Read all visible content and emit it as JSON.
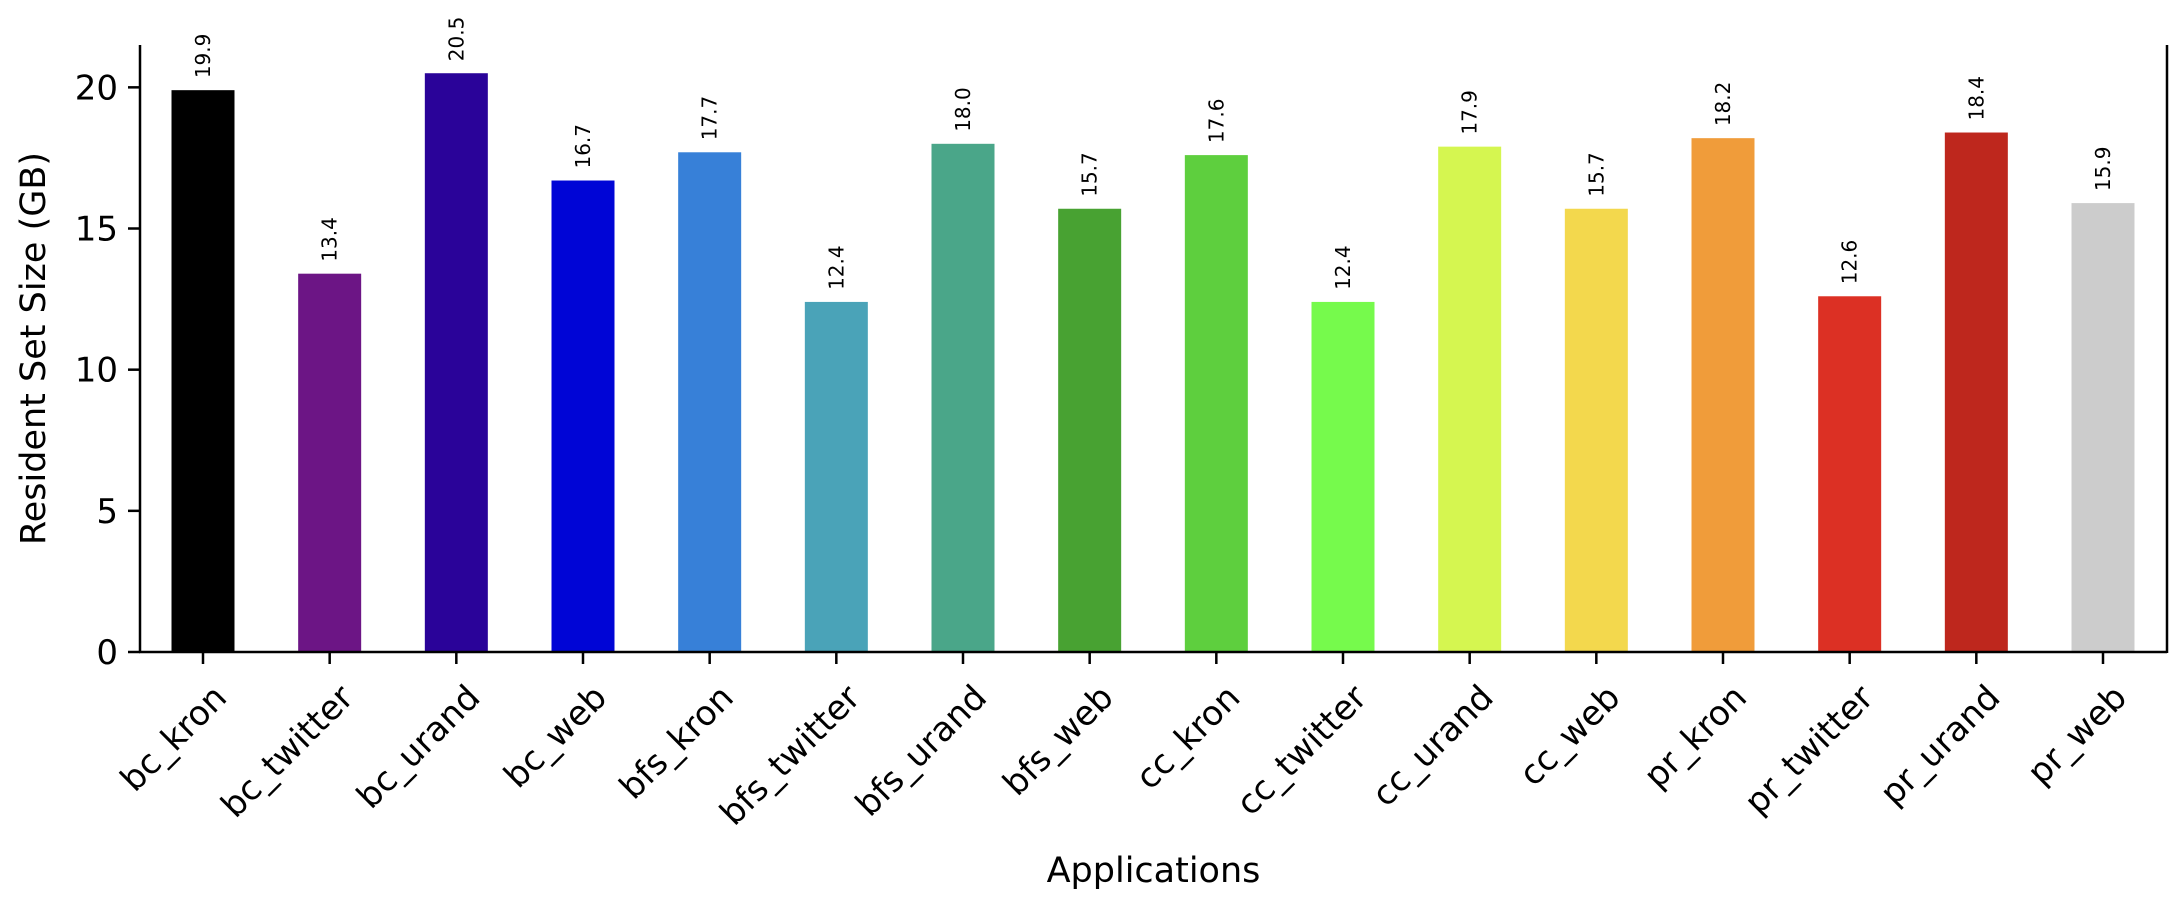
{
  "chart_data": {
    "type": "bar",
    "title": "",
    "xlabel": "Applications",
    "ylabel": "Resident Set Size (GB)",
    "ylim": [
      0,
      21.5
    ],
    "yticks": [
      0,
      5,
      10,
      15,
      20
    ],
    "grid": false,
    "categories": [
      "bc_kron",
      "bc_twitter",
      "bc_urand",
      "bc_web",
      "bfs_kron",
      "bfs_twitter",
      "bfs_urand",
      "bfs_web",
      "cc_kron",
      "cc_twitter",
      "cc_urand",
      "cc_web",
      "pr_kron",
      "pr_twitter",
      "pr_urand",
      "pr_web"
    ],
    "values": [
      19.9,
      13.4,
      20.5,
      16.7,
      17.7,
      12.4,
      18.0,
      15.7,
      17.6,
      12.4,
      17.9,
      15.7,
      18.2,
      12.6,
      18.4,
      15.9
    ],
    "value_labels": [
      "19.9",
      "13.4",
      "20.5",
      "16.7",
      "17.7",
      "12.4",
      "18.0",
      "15.7",
      "17.6",
      "12.4",
      "17.9",
      "15.7",
      "18.2",
      "12.6",
      "18.4",
      "15.9"
    ],
    "colors": [
      "#000000",
      "#6c1585",
      "#2a0399",
      "#0005d6",
      "#3780d8",
      "#4aa3b8",
      "#4aa689",
      "#48a232",
      "#5ecf3e",
      "#76fa4c",
      "#d5f650",
      "#f3d84d",
      "#f09c3a",
      "#dc3024",
      "#be271d",
      "#cccccc"
    ]
  }
}
